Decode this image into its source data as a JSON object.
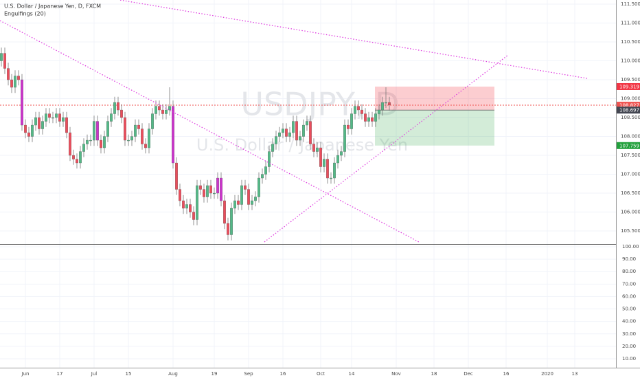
{
  "chart_data": {
    "type": "candlestick",
    "title": "U.S. Dollar / Japanese Yen, D, FXCM",
    "indicator": "Engulfings (20)",
    "watermark": "USDJPY, D",
    "watermark_subtitle": "U.S. Dollar / Japanese Yen",
    "up_color": "#53b987",
    "down_color": "#eb4d5c",
    "engulfing_color": "#cc33cc",
    "engulfing": [
      6,
      28,
      50,
      63,
      64
    ],
    "open": [
      110.0,
      110.2,
      109.8,
      109.5,
      109.3,
      109.6,
      109.5,
      108.3,
      108.1,
      108.0,
      108.3,
      108.5,
      108.2,
      108.4,
      108.6,
      108.5,
      108.5,
      108.6,
      108.4,
      108.5,
      108.1,
      107.5,
      107.4,
      107.3,
      107.6,
      107.8,
      107.9,
      107.9,
      108.4,
      107.9,
      107.7,
      108.0,
      108.4,
      108.6,
      108.9,
      108.7,
      108.5,
      107.9,
      107.9,
      108.0,
      108.3,
      108.2,
      107.8,
      107.7,
      108.2,
      108.6,
      108.8,
      108.7,
      108.6,
      108.7,
      108.8,
      107.3,
      106.6,
      106.3,
      106.1,
      106.2,
      106.0,
      105.8,
      106.7,
      106.6,
      106.4,
      106.7,
      106.5,
      106.5,
      106.9,
      106.3,
      105.7,
      105.4,
      106.1,
      106.3,
      106.2,
      106.7,
      106.6,
      106.2,
      106.3,
      106.4,
      106.9,
      107.0,
      107.2,
      107.6,
      107.8,
      108.0,
      108.1,
      108.2,
      108.0,
      108.1,
      108.4,
      107.9,
      108.0,
      108.3,
      108.4,
      107.8,
      107.6,
      107.7,
      107.2,
      107.4,
      106.9,
      106.9,
      107.3,
      107.5,
      107.6,
      108.3,
      108.2,
      108.6,
      108.8,
      108.7,
      108.6,
      108.4,
      108.5,
      108.4,
      108.6,
      108.7,
      108.9,
      108.9
    ],
    "high": [
      110.35,
      110.35,
      109.95,
      109.65,
      109.75,
      109.75,
      109.65,
      108.45,
      108.25,
      108.45,
      108.65,
      108.65,
      108.55,
      108.75,
      108.75,
      108.65,
      108.75,
      108.75,
      108.65,
      108.65,
      108.25,
      107.65,
      107.55,
      107.75,
      107.95,
      108.05,
      108.05,
      108.55,
      108.55,
      108.05,
      108.15,
      108.55,
      108.75,
      109.05,
      109.05,
      108.85,
      108.65,
      108.05,
      108.15,
      108.45,
      108.45,
      108.35,
      107.95,
      108.35,
      108.75,
      108.95,
      108.95,
      108.85,
      108.85,
      109.3,
      108.95,
      107.45,
      106.75,
      106.45,
      106.35,
      106.35,
      106.15,
      106.85,
      106.85,
      106.75,
      106.85,
      106.85,
      106.65,
      107.05,
      107.05,
      106.45,
      105.85,
      106.25,
      106.45,
      106.45,
      106.85,
      106.85,
      106.75,
      106.45,
      106.55,
      107.05,
      107.15,
      107.35,
      107.75,
      107.95,
      108.15,
      108.25,
      108.35,
      108.35,
      108.25,
      108.55,
      108.55,
      108.15,
      108.45,
      108.55,
      108.55,
      107.95,
      107.85,
      107.85,
      107.55,
      107.55,
      107.05,
      107.45,
      107.65,
      107.75,
      108.45,
      108.45,
      108.75,
      108.95,
      108.95,
      108.85,
      108.75,
      108.65,
      108.65,
      108.75,
      108.85,
      109.05,
      109.3,
      109.05
    ],
    "low": [
      109.85,
      109.65,
      109.35,
      109.15,
      109.15,
      109.35,
      108.15,
      107.95,
      107.85,
      107.85,
      108.15,
      108.05,
      108.05,
      108.25,
      108.35,
      108.35,
      108.35,
      108.25,
      108.25,
      107.95,
      107.35,
      107.25,
      107.15,
      107.15,
      107.45,
      107.65,
      107.75,
      107.75,
      107.75,
      107.55,
      107.55,
      107.85,
      108.25,
      108.45,
      108.55,
      108.35,
      107.75,
      107.75,
      107.75,
      107.85,
      108.05,
      107.65,
      107.55,
      107.55,
      108.05,
      108.45,
      108.55,
      108.45,
      108.45,
      108.55,
      107.15,
      106.45,
      106.15,
      105.95,
      105.95,
      105.85,
      105.65,
      105.65,
      106.45,
      106.25,
      106.25,
      106.35,
      106.35,
      106.35,
      106.15,
      105.55,
      105.25,
      105.25,
      105.95,
      106.05,
      106.05,
      106.45,
      106.05,
      106.05,
      106.15,
      106.25,
      106.75,
      106.85,
      107.05,
      107.45,
      107.65,
      107.85,
      107.95,
      107.85,
      107.85,
      107.95,
      107.75,
      107.75,
      107.85,
      108.15,
      107.65,
      107.45,
      107.45,
      107.05,
      107.05,
      106.75,
      106.75,
      106.75,
      107.15,
      107.35,
      107.45,
      108.05,
      108.05,
      108.45,
      108.55,
      108.45,
      108.25,
      108.25,
      108.25,
      108.25,
      108.45,
      108.55,
      108.75,
      108.68
    ],
    "close": [
      110.2,
      109.8,
      109.5,
      109.3,
      109.6,
      109.5,
      108.3,
      108.1,
      108.0,
      108.3,
      108.5,
      108.2,
      108.4,
      108.6,
      108.5,
      108.5,
      108.6,
      108.4,
      108.5,
      108.1,
      107.5,
      107.4,
      107.3,
      107.6,
      107.8,
      107.9,
      107.9,
      108.4,
      107.9,
      107.7,
      108.0,
      108.4,
      108.6,
      108.9,
      108.7,
      108.5,
      107.9,
      107.9,
      108.0,
      108.3,
      108.2,
      107.8,
      107.7,
      108.2,
      108.6,
      108.8,
      108.7,
      108.6,
      108.7,
      108.8,
      107.3,
      106.6,
      106.3,
      106.1,
      106.2,
      106.0,
      105.8,
      106.7,
      106.6,
      106.4,
      106.7,
      106.5,
      106.5,
      106.9,
      106.3,
      105.7,
      105.4,
      106.1,
      106.3,
      106.2,
      106.7,
      106.6,
      106.2,
      106.3,
      106.4,
      106.9,
      107.0,
      107.2,
      107.6,
      107.8,
      108.0,
      108.1,
      108.2,
      108.0,
      108.1,
      108.4,
      107.9,
      108.0,
      108.3,
      108.4,
      107.8,
      107.6,
      107.7,
      107.2,
      107.4,
      106.9,
      106.9,
      107.3,
      107.5,
      107.6,
      108.3,
      108.2,
      108.6,
      108.8,
      108.7,
      108.6,
      108.4,
      108.5,
      108.4,
      108.6,
      108.7,
      108.9,
      108.9,
      108.83
    ],
    "xlim": [
      -0.4,
      179
    ],
    "xticks": [
      {
        "value": 7,
        "label": "Jun"
      },
      {
        "value": 17,
        "label": "17"
      },
      {
        "value": 27,
        "label": "Jul"
      },
      {
        "value": 37,
        "label": "15"
      },
      {
        "value": 50,
        "label": "Aug"
      },
      {
        "value": 62,
        "label": "19"
      },
      {
        "value": 72,
        "label": "Sep"
      },
      {
        "value": 82,
        "label": "16"
      },
      {
        "value": 93,
        "label": "Oct"
      },
      {
        "value": 102,
        "label": "14"
      },
      {
        "value": 115,
        "label": "Nov"
      },
      {
        "value": 126,
        "label": "18"
      },
      {
        "value": 136,
        "label": "Dec"
      },
      {
        "value": 147,
        "label": "16"
      },
      {
        "value": 159,
        "label": "2020"
      },
      {
        "value": 167,
        "label": "13"
      }
    ],
    "ylim": [
      105.155,
      111.61
    ],
    "yticks": [
      {
        "value": 111.5,
        "label": "111.500"
      },
      {
        "value": 111,
        "label": "111.000"
      },
      {
        "value": 110.5,
        "label": "110.500"
      },
      {
        "value": 110,
        "label": "110.000"
      },
      {
        "value": 109.5,
        "label": "109.500"
      },
      {
        "value": 109,
        "label": "109.000"
      },
      {
        "value": 108.5,
        "label": "108.500"
      },
      {
        "value": 108,
        "label": "108.000"
      },
      {
        "value": 107.5,
        "label": "107.500"
      },
      {
        "value": 107,
        "label": "107.000"
      },
      {
        "value": 106.5,
        "label": "106.500"
      },
      {
        "value": 106,
        "label": "106.000"
      },
      {
        "value": 105.5,
        "label": "105.500"
      }
    ],
    "y2lim": [
      2.8,
      101.66
    ],
    "y2ticks": [
      {
        "value": 100,
        "label": "100.00"
      },
      {
        "value": 90,
        "label": "90.00"
      },
      {
        "value": 80,
        "label": "80.00"
      },
      {
        "value": 70,
        "label": "70.00"
      },
      {
        "value": 60,
        "label": "60.00"
      },
      {
        "value": 50,
        "label": "50.00"
      },
      {
        "value": 40,
        "label": "40.00"
      },
      {
        "value": 30,
        "label": "30.00"
      },
      {
        "value": 20,
        "label": "20.00"
      },
      {
        "value": 10,
        "label": "10.00"
      }
    ],
    "grid": true,
    "last_price": 108.827,
    "last_price_color": "#ef5350",
    "position": {
      "x": [
        108.8,
        143.6
      ],
      "stop": 109.319,
      "entry": 108.697,
      "target": 107.759,
      "stop_color": "#f23645",
      "entry_color": "#434651",
      "target_color": "#22a03c"
    },
    "trendline_color": "#e040e0",
    "trendlines": [
      {
        "x": [
          -0.4,
          121.6
        ],
        "y": [
          111.064,
          105.209
        ]
      },
      {
        "x": [
          34.6,
          170.6
        ],
        "y": [
          111.609,
          109.536
        ]
      },
      {
        "x": [
          76.6,
          147.6
        ],
        "y": [
          105.209,
          110.155
        ]
      }
    ]
  }
}
